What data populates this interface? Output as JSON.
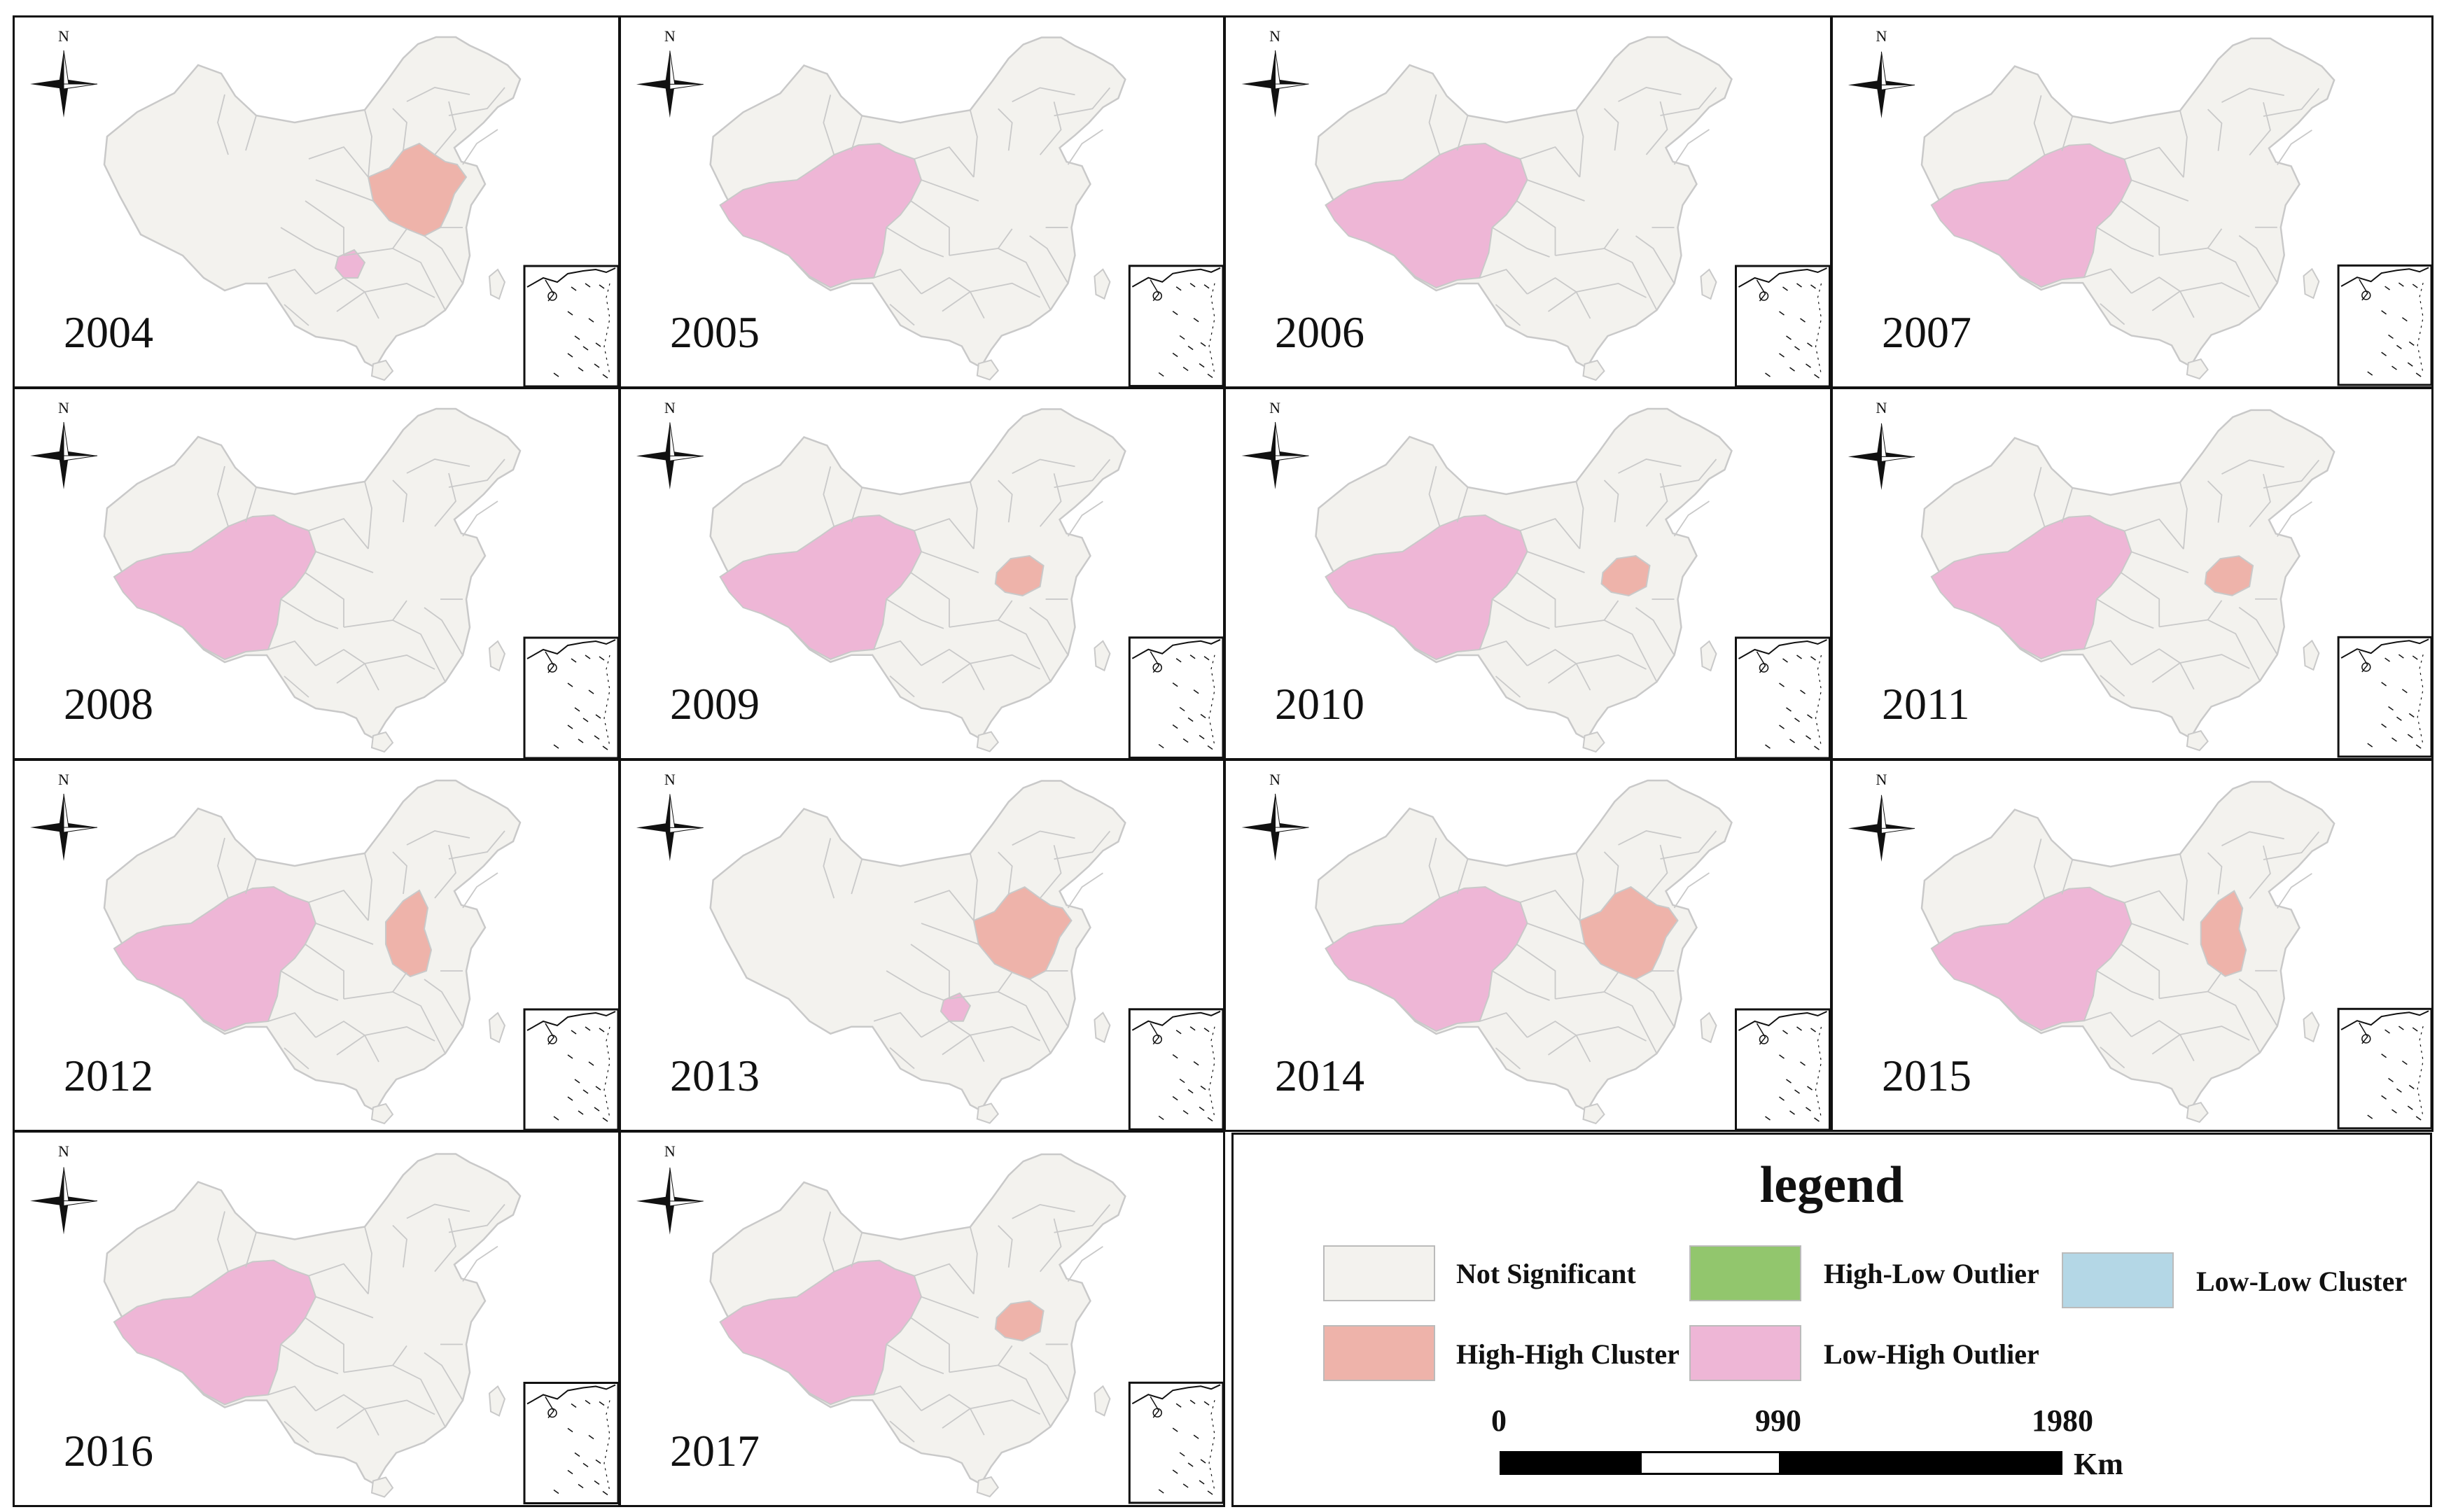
{
  "colors": {
    "not_significant": "#f3f2ee",
    "high_high": "#eeb3aa",
    "low_high": "#eeb6d6",
    "high_low": "#92c66d",
    "low_low": "#b4d7e6",
    "border": "#c9c9c9"
  },
  "map": {
    "north_label": "N",
    "panels": [
      {
        "year": "2004",
        "hh": "hh_a",
        "lh": "lh_b"
      },
      {
        "year": "2005",
        "hh": "",
        "lh": "lh_w"
      },
      {
        "year": "2006",
        "hh": "",
        "lh": "lh_w"
      },
      {
        "year": "2007",
        "hh": "",
        "lh": "lh_w"
      },
      {
        "year": "2008",
        "hh": "",
        "lh": "lh_w"
      },
      {
        "year": "2009",
        "hh": "hh_c",
        "lh": "lh_w"
      },
      {
        "year": "2010",
        "hh": "hh_c",
        "lh": "lh_w"
      },
      {
        "year": "2011",
        "hh": "hh_c",
        "lh": "lh_w"
      },
      {
        "year": "2012",
        "hh": "hh_b",
        "lh": "lh_w"
      },
      {
        "year": "2013",
        "hh": "hh_a",
        "lh": "lh_b"
      },
      {
        "year": "2014",
        "hh": "hh_a",
        "lh": "lh_w"
      },
      {
        "year": "2015",
        "hh": "hh_b",
        "lh": "lh_w"
      },
      {
        "year": "2016",
        "hh": "",
        "lh": "lh_w"
      },
      {
        "year": "2017",
        "hh": "hh_c",
        "lh": "lh_w"
      }
    ]
  },
  "legend": {
    "title": "legend",
    "items": [
      {
        "label": "Not Significant",
        "color_key": "not_significant"
      },
      {
        "label": "High-High Cluster",
        "color_key": "high_high"
      },
      {
        "label": "High-Low Outlier",
        "color_key": "high_low"
      },
      {
        "label": "Low-High Outlier",
        "color_key": "low_high"
      },
      {
        "label": "Low-Low Cluster",
        "color_key": "low_low"
      }
    ],
    "scale": {
      "ticks": [
        "0",
        "990",
        "1980"
      ],
      "unit": "Km"
    }
  }
}
